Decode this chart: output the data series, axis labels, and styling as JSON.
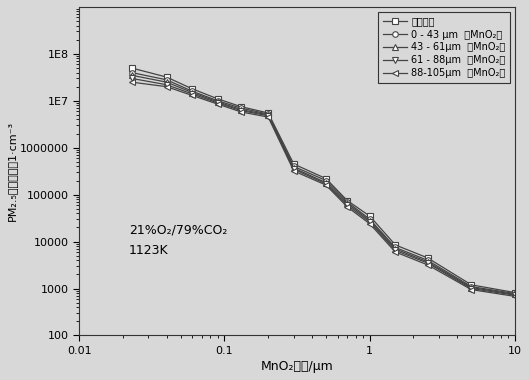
{
  "xlabel": "MnO₂粒径/μm",
  "ylabel": "PM₂.₅数量浓度／1·cm⁻³",
  "annotation_line1": "21%O₂/79%CO₂",
  "annotation_line2": "1123K",
  "xlim": [
    0.01,
    10
  ],
  "ylim": [
    100,
    1000000000.0
  ],
  "legend_labels": [
    "无添加剑",
    "0 - 43 μm  （MnO₂）",
    "43 - 61μm  （MnO₂）",
    "61 - 88μm  （MnO₂）",
    "88-105μm  （MnO₂）"
  ],
  "markers": [
    "s",
    "o",
    "^",
    "v",
    "<"
  ],
  "line_color": "#444444",
  "bg_color": "#d8d8d8",
  "ytick_vals": [
    100,
    1000,
    10000,
    100000,
    1000000,
    10000000,
    100000000
  ],
  "ytick_labels": [
    "100",
    "1000",
    "10000",
    "100000",
    "1000000",
    "1E7",
    "1E8"
  ],
  "series": [
    {
      "x": [
        0.023,
        0.04,
        0.06,
        0.09,
        0.13,
        0.2,
        0.3,
        0.5,
        0.7,
        1.0,
        1.5,
        2.5,
        5.0,
        10.0
      ],
      "y": [
        50000000.0,
        32000000.0,
        18000000.0,
        11000000.0,
        7500000.0,
        5500000.0,
        450000.0,
        220000.0,
        75000.0,
        35000.0,
        8500,
        4500,
        1200,
        820
      ]
    },
    {
      "x": [
        0.023,
        0.04,
        0.06,
        0.09,
        0.13,
        0.2,
        0.3,
        0.5,
        0.7,
        1.0,
        1.5,
        2.5,
        5.0,
        10.0
      ],
      "y": [
        40000000.0,
        28000000.0,
        16000000.0,
        10000000.0,
        7000000.0,
        5200000.0,
        400000.0,
        200000.0,
        70000.0,
        30000.0,
        7500,
        4000,
        1100,
        780
      ]
    },
    {
      "x": [
        0.023,
        0.04,
        0.06,
        0.09,
        0.13,
        0.2,
        0.3,
        0.5,
        0.7,
        1.0,
        1.5,
        2.5,
        5.0,
        10.0
      ],
      "y": [
        35000000.0,
        25000000.0,
        15000000.0,
        9500000.0,
        6500000.0,
        5000000.0,
        370000.0,
        180000.0,
        65000.0,
        28000.0,
        7000,
        3700,
        1050,
        750
      ]
    },
    {
      "x": [
        0.023,
        0.04,
        0.06,
        0.09,
        0.13,
        0.2,
        0.3,
        0.5,
        0.7,
        1.0,
        1.5,
        2.5,
        5.0,
        10.0
      ],
      "y": [
        30000000.0,
        22000000.0,
        14000000.0,
        9000000.0,
        6200000.0,
        4800000.0,
        350000.0,
        170000.0,
        60000.0,
        26000.0,
        6500,
        3500,
        1000,
        720
      ]
    },
    {
      "x": [
        0.023,
        0.04,
        0.06,
        0.09,
        0.13,
        0.2,
        0.3,
        0.5,
        0.7,
        1.0,
        1.5,
        2.5,
        5.0,
        10.0
      ],
      "y": [
        25000000.0,
        20000000.0,
        13000000.0,
        8500000.0,
        5800000.0,
        4500000.0,
        320000.0,
        160000.0,
        55000.0,
        24000.0,
        6000,
        3200,
        950,
        680
      ]
    }
  ]
}
